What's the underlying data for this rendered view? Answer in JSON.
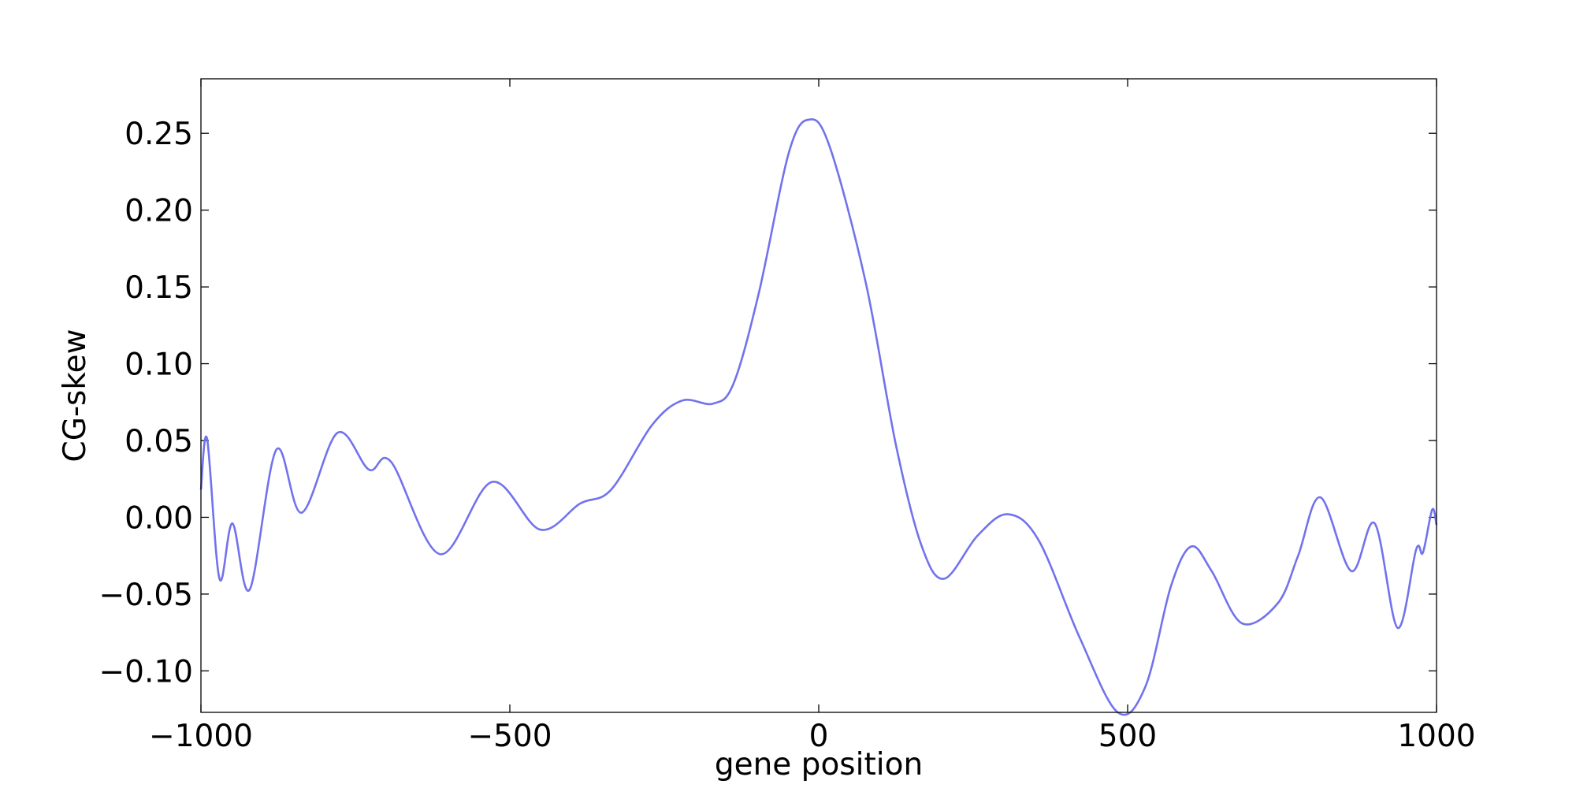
{
  "chart_data": {
    "type": "line",
    "xlabel": "gene position",
    "ylabel": "CG-skew",
    "x": [
      -1000,
      -990,
      -970,
      -949,
      -921,
      -878,
      -837,
      -779,
      -728,
      -692,
      -613,
      -529,
      -451,
      -386,
      -336,
      -270,
      -221,
      -171,
      -138,
      -97,
      -48,
      -15,
      18,
      76,
      125,
      166,
      203,
      257,
      306,
      356,
      422,
      484,
      529,
      570,
      603,
      636,
      685,
      743,
      776,
      812,
      862,
      900,
      937,
      967,
      978,
      993,
      1000
    ],
    "series": [
      {
        "name": "CG-skew",
        "color": "#7272ee",
        "values": [
          0.018,
          0.051,
          -0.04,
          -0.004,
          -0.047,
          0.044,
          0.003,
          0.055,
          0.031,
          0.036,
          -0.024,
          0.023,
          -0.008,
          0.009,
          0.018,
          0.06,
          0.076,
          0.074,
          0.087,
          0.146,
          0.238,
          0.259,
          0.241,
          0.153,
          0.047,
          -0.018,
          -0.04,
          -0.012,
          0.002,
          -0.015,
          -0.078,
          -0.127,
          -0.11,
          -0.045,
          -0.019,
          -0.035,
          -0.069,
          -0.056,
          -0.025,
          0.013,
          -0.035,
          -0.004,
          -0.072,
          -0.021,
          -0.023,
          0.005,
          -0.005
        ]
      }
    ],
    "xlim": [
      -1000,
      1000
    ],
    "xticks": [
      {
        "value": -1000,
        "label": "−1000"
      },
      {
        "value": -500,
        "label": "−500"
      },
      0,
      500,
      1000
    ],
    "ylim": [
      -0.127,
      0.2855
    ],
    "yticks": [
      {
        "value": -0.1,
        "label": "−0.10"
      },
      {
        "value": -0.05,
        "label": "−0.05"
      },
      {
        "value": 0,
        "label": "0.00"
      },
      0.05,
      {
        "value": 0.1,
        "label": "0.10"
      },
      0.15,
      {
        "value": 0.2,
        "label": "0.20"
      },
      0.25
    ],
    "grid": false
  }
}
